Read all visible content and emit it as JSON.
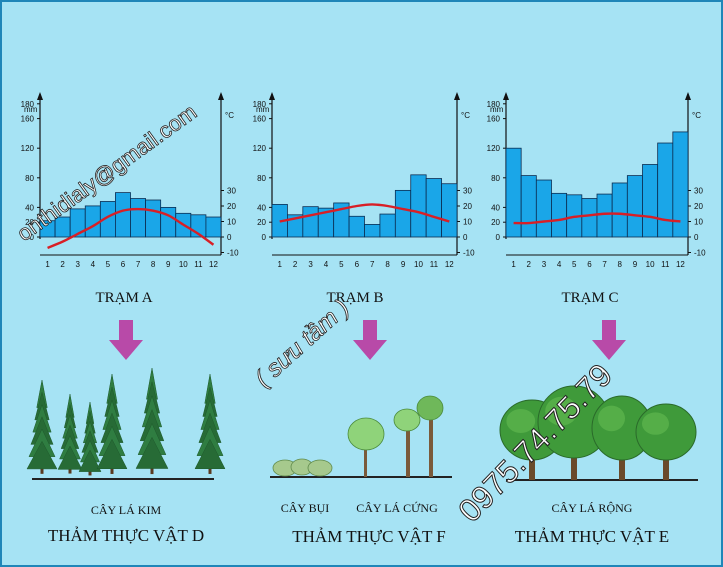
{
  "chart_data": [
    {
      "type": "bar",
      "title": "TRẠM A",
      "categories": [
        "1",
        "2",
        "3",
        "4",
        "5",
        "6",
        "7",
        "8",
        "9",
        "10",
        "11",
        "12"
      ],
      "series": [
        {
          "name": "mm",
          "values": [
            22,
            27,
            38,
            42,
            48,
            60,
            52,
            50,
            40,
            32,
            30,
            27
          ]
        },
        {
          "name": "°C",
          "values": [
            -7,
            -3,
            2,
            7,
            13,
            17,
            18,
            17,
            14,
            8,
            2,
            -5
          ]
        }
      ],
      "ylabel_left": "mm",
      "ylabel_right": "°C",
      "left_ticks": [
        "180",
        "160",
        "120",
        "80",
        "40",
        "20",
        "0"
      ],
      "right_ticks": [
        "30",
        "20",
        "10",
        "0",
        "-10"
      ]
    },
    {
      "type": "bar",
      "title": "TRẠM B",
      "categories": [
        "1",
        "2",
        "3",
        "4",
        "5",
        "6",
        "7",
        "8",
        "9",
        "10",
        "11",
        "12"
      ],
      "series": [
        {
          "name": "mm",
          "values": [
            44,
            30,
            41,
            39,
            46,
            28,
            17,
            31,
            63,
            84,
            79,
            72
          ]
        },
        {
          "name": "°C",
          "values": [
            10,
            12,
            14,
            16,
            18,
            20,
            21,
            20,
            18,
            16,
            13,
            10
          ]
        }
      ],
      "ylabel_left": "mm",
      "ylabel_right": "°C",
      "left_ticks": [
        "180",
        "160",
        "120",
        "80",
        "40",
        "20",
        "0"
      ],
      "right_ticks": [
        "30",
        "20",
        "10",
        "0",
        "-10"
      ]
    },
    {
      "type": "bar",
      "title": "TRẠM C",
      "categories": [
        "1",
        "2",
        "3",
        "4",
        "5",
        "6",
        "7",
        "8",
        "9",
        "10",
        "11",
        "12"
      ],
      "series": [
        {
          "name": "mm",
          "values": [
            120,
            83,
            77,
            59,
            57,
            52,
            58,
            73,
            83,
            98,
            127,
            142
          ]
        },
        {
          "name": "°C",
          "values": [
            9,
            9,
            10,
            11,
            13,
            14,
            15,
            15,
            14,
            13,
            11,
            10
          ]
        }
      ],
      "ylabel_left": "mm",
      "ylabel_right": "°C",
      "left_ticks": [
        "180",
        "160",
        "120",
        "80",
        "40",
        "20",
        "0"
      ],
      "right_ticks": [
        "30",
        "20",
        "10",
        "0",
        "-10"
      ]
    }
  ],
  "panels": [
    {
      "veg_types": [
        "CÂY LÁ KIM"
      ],
      "veg_label": "THẢM THỰC VẬT D"
    },
    {
      "veg_types": [
        "CÂY BỤI",
        "CÂY LÁ CỨNG"
      ],
      "veg_label": "THẢM THỰC VẬT F"
    },
    {
      "veg_types": [
        "CÂY LÁ RỘNG"
      ],
      "veg_label": "THẢM THỰC VẬT  E"
    }
  ],
  "watermarks": {
    "email": "onthidialy@gmail.com",
    "note": "( sưu tầm )",
    "phone": "0975.74.75.79"
  },
  "colors": {
    "background": "#a6e3f4",
    "bar": "#1aa6e8",
    "temp_line": "#d81f26",
    "arrow": "#b84aa8",
    "conifer": "#2e7a3f",
    "broadleaf": "#3f9a3a"
  }
}
